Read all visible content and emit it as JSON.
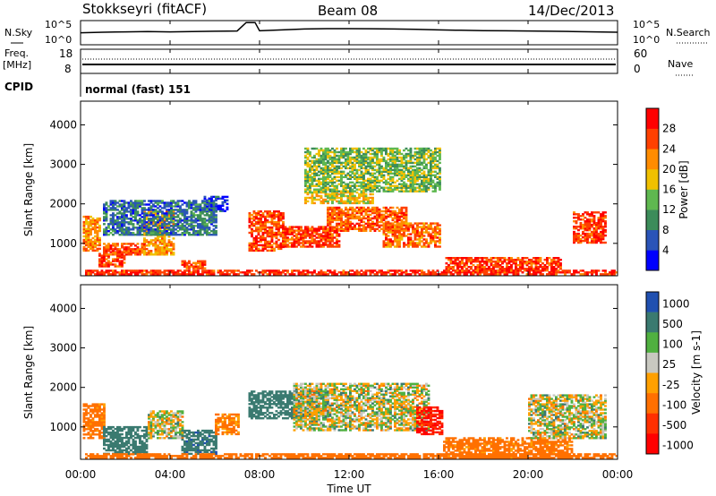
{
  "header": {
    "station": "Stokkseyri (fitACF)",
    "beam": "Beam 08",
    "date": "14/Dec/2013"
  },
  "noise_panel": {
    "left_label": "N.Sky",
    "left_ticks": [
      "10^5",
      "10^0"
    ],
    "right_label": "N.Search",
    "right_ticks": [
      "10^5",
      "10^0"
    ]
  },
  "freq_panel": {
    "left_label_1": "Freq.",
    "left_label_2": "[MHz]",
    "left_ticks": [
      "18",
      "8"
    ],
    "right_label": "Nave",
    "right_ticks": [
      "60",
      "0"
    ],
    "cpid_label": "CPID",
    "cpid_value": "normal (fast) 151"
  },
  "colors": {
    "power": [
      "#0000ff",
      "#2a54b8",
      "#3c8c5a",
      "#5fb850",
      "#f0c000",
      "#ff8c00",
      "#ff4000",
      "#ff0000"
    ],
    "velocity": [
      "#2050b0",
      "#3a7a70",
      "#50b040",
      "#c8c8c0",
      "#ffa000",
      "#ff7000",
      "#ff3000",
      "#ff0000"
    ]
  },
  "chart_data": [
    {
      "type": "line",
      "title": "N.Sky / N.Search",
      "x_range_hours": [
        0,
        24
      ],
      "y_scale": "log",
      "ylim": [
        1,
        100000
      ],
      "series": [
        {
          "name": "N.Sky",
          "x": [
            0,
            1,
            2,
            3,
            4,
            5,
            6,
            7,
            7.4,
            7.8,
            8,
            9,
            10,
            11,
            12,
            13,
            14,
            15,
            16,
            17,
            18,
            19,
            20,
            21,
            22,
            23,
            24
          ],
          "values": [
            300,
            400,
            500,
            600,
            500,
            600,
            700,
            800,
            90000,
            90000,
            900,
            1500,
            2500,
            3000,
            3000,
            2800,
            2500,
            2000,
            1500,
            1200,
            1000,
            900,
            800,
            700,
            600,
            500,
            400
          ]
        }
      ]
    },
    {
      "type": "scatter",
      "title": "",
      "x_range_hours": [
        0,
        24
      ],
      "y_left_lim": [
        8,
        18
      ],
      "y_right_lim": [
        0,
        60
      ],
      "series": [
        {
          "name": "Freq.",
          "x": [
            0,
            24
          ],
          "values": [
            10.5,
            10.5
          ]
        },
        {
          "name": "Nave",
          "x": [
            0,
            24
          ],
          "values": [
            26,
            26
          ]
        }
      ]
    },
    {
      "type": "heatmap",
      "xlabel": "",
      "ylabel": "Slant Range [km]",
      "xlim_hours": [
        0,
        24
      ],
      "ylim_km": [
        180,
        4600
      ],
      "yticks": [
        "1000",
        "2000",
        "3000",
        "4000"
      ],
      "colorbar_label": "Power [dB]",
      "colorbar_ticks": [
        "4",
        "8",
        "12",
        "16",
        "20",
        "24",
        "28"
      ],
      "colorbar_range": [
        0,
        32
      ],
      "regions": [
        {
          "t": [
            0.1,
            0.8
          ],
          "r": [
            800,
            1700
          ],
          "v": 22
        },
        {
          "t": [
            0.8,
            2.0
          ],
          "r": [
            400,
            800
          ],
          "v": 27
        },
        {
          "t": [
            1.0,
            3.0
          ],
          "r": [
            700,
            1000
          ],
          "v": 25
        },
        {
          "t": [
            2.8,
            4.2
          ],
          "r": [
            700,
            1800
          ],
          "v": 21
        },
        {
          "t": [
            4.5,
            5.5
          ],
          "r": [
            350,
            550
          ],
          "v": 26
        },
        {
          "t": [
            5.5,
            6.5
          ],
          "r": [
            1800,
            2200
          ],
          "v": 4
        },
        {
          "t": [
            7.5,
            9.0
          ],
          "r": [
            800,
            1800
          ],
          "v": 26
        },
        {
          "t": [
            9.0,
            11.5
          ],
          "r": [
            900,
            1400
          ],
          "v": 27
        },
        {
          "t": [
            11.0,
            14.5
          ],
          "r": [
            1300,
            1900
          ],
          "v": 25
        },
        {
          "t": [
            13.5,
            16.0
          ],
          "r": [
            900,
            1500
          ],
          "v": 24
        },
        {
          "t": [
            10.0,
            13.0
          ],
          "r": [
            2000,
            2300
          ],
          "v": 18
        },
        {
          "t": [
            16.3,
            21.5
          ],
          "r": [
            250,
            650
          ],
          "v": 27
        },
        {
          "t": [
            22.0,
            23.5
          ],
          "r": [
            1000,
            1800
          ],
          "v": 27
        },
        {
          "t": [
            1.0,
            6.0
          ],
          "r": [
            1200,
            2100
          ],
          "v": 8
        },
        {
          "t": [
            10.0,
            16.0
          ],
          "r": [
            2300,
            3400
          ],
          "v": 14
        },
        {
          "t": [
            0.2,
            24.0
          ],
          "r": [
            200,
            320
          ],
          "v": 28
        }
      ]
    },
    {
      "type": "heatmap",
      "xlabel": "Time UT",
      "ylabel": "Slant Range [km]",
      "xlim_hours": [
        0,
        24
      ],
      "xticks": [
        "00:00",
        "04:00",
        "08:00",
        "12:00",
        "16:00",
        "20:00",
        "00:00"
      ],
      "ylim_km": [
        180,
        4600
      ],
      "yticks": [
        "1000",
        "2000",
        "3000",
        "4000"
      ],
      "colorbar_label": "Velocity [m s-1]",
      "colorbar_ticks": [
        "1000",
        "500",
        "100",
        "25",
        "-25",
        "-100",
        "-500",
        "-1000"
      ],
      "colorbar_range": [
        -1200,
        1200
      ],
      "regions": [
        {
          "t": [
            0.1,
            1.0
          ],
          "r": [
            700,
            1600
          ],
          "v": -200
        },
        {
          "t": [
            1.0,
            3.0
          ],
          "r": [
            300,
            1000
          ],
          "v": 300
        },
        {
          "t": [
            3.0,
            4.5
          ],
          "r": [
            700,
            1400
          ],
          "v": 0
        },
        {
          "t": [
            4.5,
            6.0
          ],
          "r": [
            300,
            900
          ],
          "v": 400
        },
        {
          "t": [
            6.0,
            7.0
          ],
          "r": [
            800,
            1300
          ],
          "v": -150
        },
        {
          "t": [
            7.5,
            11.0
          ],
          "r": [
            1200,
            1900
          ],
          "v": 250
        },
        {
          "t": [
            9.5,
            15.5
          ],
          "r": [
            900,
            2100
          ],
          "v": 0
        },
        {
          "t": [
            15.0,
            16.2
          ],
          "r": [
            800,
            1500
          ],
          "v": -1000
        },
        {
          "t": [
            16.2,
            22.0
          ],
          "r": [
            200,
            700
          ],
          "v": -200
        },
        {
          "t": [
            20.0,
            23.5
          ],
          "r": [
            700,
            1800
          ],
          "v": 0
        },
        {
          "t": [
            0.2,
            24.0
          ],
          "r": [
            200,
            320
          ],
          "v": -300
        }
      ]
    }
  ]
}
